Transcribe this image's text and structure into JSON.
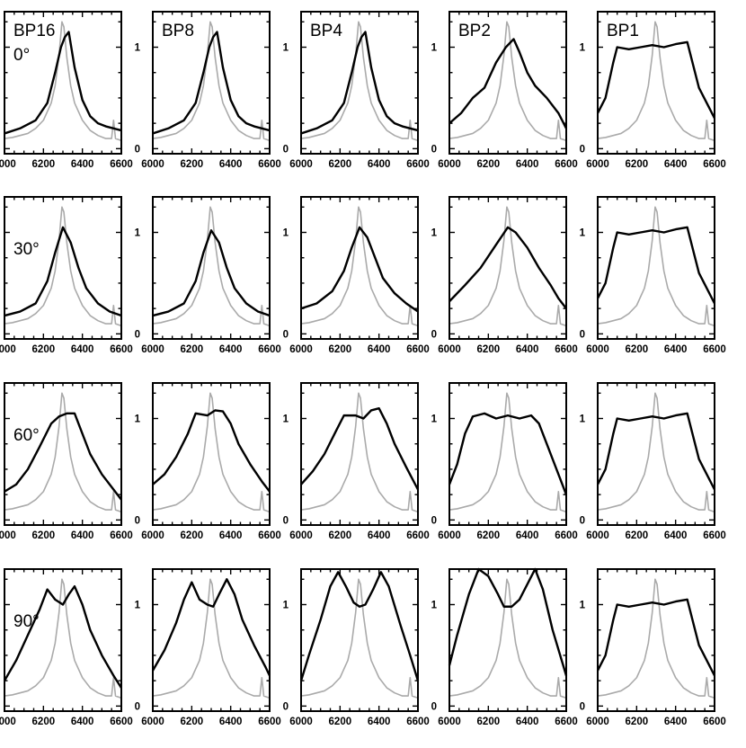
{
  "chart_data": {
    "type": "line",
    "columns": [
      "BP16",
      "BP8",
      "BP4",
      "BP2",
      "BP1"
    ],
    "rows": [
      "0°",
      "30°",
      "60°",
      "90°"
    ],
    "xlim": [
      6000,
      6600
    ],
    "xticks": [
      6000,
      6200,
      6400,
      6600
    ],
    "xtick_labels": [
      "6000",
      "6200",
      "6400",
      "6600"
    ],
    "ylim": [
      -0.05,
      1.35
    ],
    "yticks": [
      0,
      1
    ],
    "ytick_labels": [
      "0",
      "1"
    ],
    "grid": false,
    "colors": {
      "model": "#000000",
      "reference": "#aaaaaa"
    },
    "reference_series": {
      "x": [
        6000,
        6040,
        6080,
        6120,
        6160,
        6200,
        6240,
        6260,
        6280,
        6295,
        6305,
        6320,
        6340,
        6360,
        6400,
        6440,
        6480,
        6520,
        6550,
        6560,
        6570,
        6600
      ],
      "y": [
        0.1,
        0.11,
        0.13,
        0.15,
        0.2,
        0.28,
        0.45,
        0.62,
        0.92,
        1.25,
        1.2,
        0.9,
        0.62,
        0.45,
        0.28,
        0.18,
        0.13,
        0.1,
        0.1,
        0.28,
        0.1,
        0.08
      ]
    },
    "panels": [
      {
        "row": "0°",
        "column": "BP16",
        "x": [
          6000,
          6080,
          6160,
          6220,
          6260,
          6290,
          6310,
          6330,
          6360,
          6400,
          6440,
          6480,
          6520,
          6560,
          6600
        ],
        "y": [
          0.15,
          0.2,
          0.28,
          0.45,
          0.75,
          1.0,
          1.1,
          1.15,
          0.8,
          0.48,
          0.32,
          0.25,
          0.22,
          0.2,
          0.18
        ]
      },
      {
        "row": "0°",
        "column": "BP8",
        "x": [
          6000,
          6080,
          6160,
          6220,
          6260,
          6290,
          6310,
          6330,
          6360,
          6400,
          6440,
          6480,
          6520,
          6560,
          6600
        ],
        "y": [
          0.15,
          0.2,
          0.28,
          0.45,
          0.75,
          1.0,
          1.1,
          1.15,
          0.8,
          0.48,
          0.32,
          0.25,
          0.22,
          0.2,
          0.18
        ]
      },
      {
        "row": "0°",
        "column": "BP4",
        "x": [
          6000,
          6080,
          6160,
          6220,
          6260,
          6290,
          6310,
          6330,
          6360,
          6400,
          6440,
          6480,
          6520,
          6560,
          6600
        ],
        "y": [
          0.15,
          0.2,
          0.28,
          0.45,
          0.75,
          1.0,
          1.1,
          1.15,
          0.8,
          0.48,
          0.32,
          0.25,
          0.22,
          0.2,
          0.18
        ]
      },
      {
        "row": "0°",
        "column": "BP2",
        "x": [
          6000,
          6060,
          6120,
          6180,
          6240,
          6290,
          6330,
          6360,
          6400,
          6440,
          6500,
          6560,
          6600
        ],
        "y": [
          0.25,
          0.35,
          0.5,
          0.6,
          0.85,
          1.0,
          1.08,
          0.95,
          0.75,
          0.62,
          0.5,
          0.35,
          0.2
        ]
      },
      {
        "row": "0°",
        "column": "BP1",
        "x": [
          6000,
          6040,
          6080,
          6100,
          6160,
          6220,
          6280,
          6340,
          6400,
          6460,
          6480,
          6520,
          6560,
          6600
        ],
        "y": [
          0.35,
          0.5,
          0.85,
          1.0,
          0.98,
          1.0,
          1.02,
          1.0,
          1.03,
          1.05,
          0.9,
          0.6,
          0.45,
          0.3
        ]
      },
      {
        "row": "30°",
        "column": "BP16",
        "x": [
          6000,
          6080,
          6160,
          6220,
          6260,
          6300,
          6340,
          6380,
          6420,
          6480,
          6540,
          6600
        ],
        "y": [
          0.18,
          0.22,
          0.3,
          0.52,
          0.8,
          1.05,
          0.9,
          0.65,
          0.45,
          0.3,
          0.22,
          0.18
        ]
      },
      {
        "row": "30°",
        "column": "BP8",
        "x": [
          6000,
          6080,
          6160,
          6220,
          6260,
          6300,
          6340,
          6380,
          6420,
          6480,
          6540,
          6600
        ],
        "y": [
          0.18,
          0.22,
          0.3,
          0.52,
          0.8,
          1.02,
          0.9,
          0.65,
          0.45,
          0.3,
          0.22,
          0.18
        ]
      },
      {
        "row": "30°",
        "column": "BP4",
        "x": [
          6000,
          6080,
          6160,
          6220,
          6260,
          6300,
          6340,
          6380,
          6420,
          6480,
          6540,
          6600
        ],
        "y": [
          0.25,
          0.3,
          0.42,
          0.62,
          0.85,
          1.05,
          0.95,
          0.75,
          0.55,
          0.4,
          0.3,
          0.22
        ]
      },
      {
        "row": "30°",
        "column": "BP2",
        "x": [
          6000,
          6080,
          6160,
          6240,
          6300,
          6340,
          6400,
          6460,
          6520,
          6560,
          6600
        ],
        "y": [
          0.32,
          0.48,
          0.65,
          0.88,
          1.05,
          1.0,
          0.85,
          0.65,
          0.48,
          0.35,
          0.25
        ]
      },
      {
        "row": "30°",
        "column": "BP1",
        "x": [
          6000,
          6040,
          6080,
          6100,
          6160,
          6220,
          6280,
          6340,
          6400,
          6460,
          6480,
          6520,
          6560,
          6600
        ],
        "y": [
          0.35,
          0.5,
          0.85,
          1.0,
          0.98,
          1.0,
          1.02,
          1.0,
          1.03,
          1.05,
          0.9,
          0.6,
          0.45,
          0.3
        ]
      },
      {
        "row": "60°",
        "column": "BP16",
        "x": [
          6000,
          6060,
          6120,
          6180,
          6240,
          6280,
          6320,
          6360,
          6400,
          6440,
          6500,
          6560,
          6600
        ],
        "y": [
          0.28,
          0.35,
          0.5,
          0.72,
          0.95,
          1.02,
          1.05,
          1.05,
          0.85,
          0.65,
          0.45,
          0.3,
          0.2
        ]
      },
      {
        "row": "60°",
        "column": "BP8",
        "x": [
          6000,
          6060,
          6120,
          6180,
          6220,
          6280,
          6320,
          6360,
          6400,
          6440,
          6500,
          6560,
          6600
        ],
        "y": [
          0.35,
          0.45,
          0.62,
          0.85,
          1.05,
          1.03,
          1.08,
          1.07,
          0.95,
          0.75,
          0.55,
          0.38,
          0.28
        ]
      },
      {
        "row": "60°",
        "column": "BP4",
        "x": [
          6000,
          6060,
          6120,
          6180,
          6220,
          6280,
          6320,
          6360,
          6400,
          6440,
          6480,
          6540,
          6600
        ],
        "y": [
          0.35,
          0.48,
          0.65,
          0.88,
          1.03,
          1.03,
          1.0,
          1.08,
          1.1,
          0.95,
          0.75,
          0.52,
          0.3
        ]
      },
      {
        "row": "60°",
        "column": "BP2",
        "x": [
          6000,
          6040,
          6080,
          6120,
          6180,
          6240,
          6300,
          6360,
          6420,
          6460,
          6500,
          6560,
          6600
        ],
        "y": [
          0.35,
          0.55,
          0.85,
          1.02,
          1.05,
          1.0,
          1.03,
          1.0,
          1.03,
          0.95,
          0.75,
          0.45,
          0.25
        ]
      },
      {
        "row": "60°",
        "column": "BP1",
        "x": [
          6000,
          6040,
          6080,
          6100,
          6160,
          6220,
          6280,
          6340,
          6400,
          6460,
          6480,
          6520,
          6560,
          6600
        ],
        "y": [
          0.35,
          0.5,
          0.85,
          1.0,
          0.98,
          1.0,
          1.02,
          1.0,
          1.03,
          1.05,
          0.9,
          0.6,
          0.45,
          0.3
        ]
      },
      {
        "row": "90°",
        "column": "BP16",
        "x": [
          6000,
          6060,
          6120,
          6180,
          6220,
          6260,
          6300,
          6330,
          6360,
          6400,
          6440,
          6500,
          6560,
          6600
        ],
        "y": [
          0.25,
          0.45,
          0.7,
          0.95,
          1.15,
          1.05,
          1.0,
          1.1,
          1.18,
          1.0,
          0.75,
          0.5,
          0.3,
          0.18
        ]
      },
      {
        "row": "90°",
        "column": "BP8",
        "x": [
          6000,
          6060,
          6120,
          6160,
          6200,
          6240,
          6280,
          6310,
          6340,
          6380,
          6420,
          6460,
          6520,
          6580,
          6600
        ],
        "y": [
          0.35,
          0.55,
          0.82,
          1.05,
          1.22,
          1.05,
          1.0,
          0.98,
          1.1,
          1.25,
          1.1,
          0.85,
          0.6,
          0.38,
          0.3
        ]
      },
      {
        "row": "90°",
        "column": "BP4",
        "x": [
          6000,
          6040,
          6100,
          6150,
          6190,
          6230,
          6270,
          6300,
          6330,
          6370,
          6410,
          6450,
          6510,
          6560,
          6600
        ],
        "y": [
          0.25,
          0.5,
          0.85,
          1.18,
          1.32,
          1.18,
          1.02,
          0.98,
          1.0,
          1.15,
          1.32,
          1.18,
          0.8,
          0.5,
          0.25
        ]
      },
      {
        "row": "90°",
        "column": "BP2",
        "x": [
          6000,
          6040,
          6100,
          6150,
          6200,
          6250,
          6280,
          6320,
          6360,
          6400,
          6440,
          6480,
          6530,
          6600
        ],
        "y": [
          0.4,
          0.7,
          1.1,
          1.38,
          1.28,
          1.1,
          0.98,
          0.98,
          1.05,
          1.2,
          1.45,
          1.15,
          0.75,
          0.3
        ]
      },
      {
        "row": "90°",
        "column": "BP1",
        "x": [
          6000,
          6040,
          6080,
          6100,
          6160,
          6220,
          6280,
          6340,
          6400,
          6460,
          6480,
          6520,
          6560,
          6600
        ],
        "y": [
          0.35,
          0.5,
          0.85,
          1.0,
          0.98,
          1.0,
          1.02,
          1.0,
          1.03,
          1.05,
          0.9,
          0.6,
          0.45,
          0.3
        ]
      }
    ]
  }
}
